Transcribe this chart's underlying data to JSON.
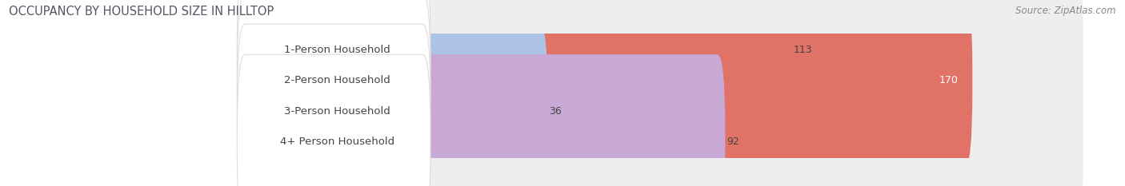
{
  "title": "OCCUPANCY BY HOUSEHOLD SIZE IN HILLTOP",
  "source": "Source: ZipAtlas.com",
  "categories": [
    "1-Person Household",
    "2-Person Household",
    "3-Person Household",
    "4+ Person Household"
  ],
  "values": [
    113,
    170,
    36,
    92
  ],
  "bar_colors": [
    "#f5b97d",
    "#e07268",
    "#adc4e8",
    "#c8a8d4"
  ],
  "bar_edge_colors": [
    "#e09848",
    "#c85848",
    "#88a8cc",
    "#a888c0"
  ],
  "xlim": [
    0,
    200
  ],
  "xticks": [
    0,
    100,
    200
  ],
  "fig_bg": "#ffffff",
  "bar_bg_color": "#eeeeee",
  "title_fontsize": 10.5,
  "source_fontsize": 8.5,
  "label_fontsize": 9.5,
  "value_fontsize": 9,
  "label_color": "#444444",
  "title_color": "#555566"
}
